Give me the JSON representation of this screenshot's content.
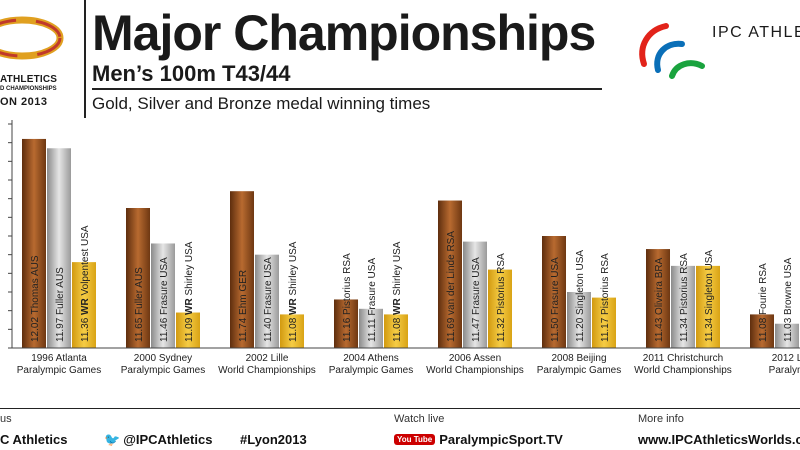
{
  "header": {
    "title": "Major Championships",
    "subtitle": "Men’s 100m T43/44",
    "description": "Gold, Silver and Bronze medal winning times",
    "left_logo": {
      "line1": "ATHLETICS",
      "line2": "D CHAMPIONSHIPS",
      "line3": "ON 2013"
    },
    "right_logo_text": "IPC ATHLET"
  },
  "colors": {
    "gold": "#e8b320",
    "silver": "#b5b5b5",
    "bronze": "#8b4a1c",
    "text": "#1a1a1a"
  },
  "chart_data": {
    "type": "bar",
    "ylim": [
      10.9,
      12.1
    ],
    "categories": [
      {
        "line1": "1996 Atlanta",
        "line2": "Paralympic Games"
      },
      {
        "line1": "2000 Sydney",
        "line2": "Paralympic Games"
      },
      {
        "line1": "2002 Lille",
        "line2": "World Championships"
      },
      {
        "line1": "2004 Athens",
        "line2": "Paralympic Games"
      },
      {
        "line1": "2006 Assen",
        "line2": "World Championships"
      },
      {
        "line1": "2008 Beijing",
        "line2": "Paralympic Games"
      },
      {
        "line1": "2011 Christchurch",
        "line2": "World Championships"
      },
      {
        "line1": "2012 L",
        "line2": "Paralym"
      }
    ],
    "groups": [
      {
        "bars": [
          {
            "medal": "bronze",
            "value": 12.02,
            "time": "12.02",
            "wr": "",
            "athlete": "Thomas AUS"
          },
          {
            "medal": "silver",
            "value": 11.97,
            "time": "11.97",
            "wr": "",
            "athlete": "Fuller AUS"
          },
          {
            "medal": "gold",
            "value": 11.36,
            "time": "11.36",
            "wr": "WR",
            "athlete": "Volpentest USA"
          }
        ]
      },
      {
        "bars": [
          {
            "medal": "bronze",
            "value": 11.65,
            "time": "11.65",
            "wr": "",
            "athlete": "Fuller AUS"
          },
          {
            "medal": "silver",
            "value": 11.46,
            "time": "11.46",
            "wr": "",
            "athlete": "Frasure USA"
          },
          {
            "medal": "gold",
            "value": 11.09,
            "time": "11.09",
            "wr": "WR",
            "athlete": "Shirley USA"
          }
        ]
      },
      {
        "bars": [
          {
            "medal": "bronze",
            "value": 11.74,
            "time": "11.74",
            "wr": "",
            "athlete": "Ehm GER"
          },
          {
            "medal": "silver",
            "value": 11.4,
            "time": "11.40",
            "wr": "",
            "athlete": "Frasure USA"
          },
          {
            "medal": "gold",
            "value": 11.08,
            "time": "11.08",
            "wr": "WR",
            "athlete": "Shirley USA"
          }
        ]
      },
      {
        "bars": [
          {
            "medal": "bronze",
            "value": 11.16,
            "time": "11.16",
            "wr": "",
            "athlete": "Pistorius RSA"
          },
          {
            "medal": "silver",
            "value": 11.11,
            "time": "11.11",
            "wr": "",
            "athlete": "Frasure USA"
          },
          {
            "medal": "gold",
            "value": 11.08,
            "time": "11.08",
            "wr": "WR",
            "athlete": "Shirley USA"
          }
        ]
      },
      {
        "bars": [
          {
            "medal": "bronze",
            "value": 11.69,
            "time": "11.69",
            "wr": "",
            "athlete": "van der Linde RSA"
          },
          {
            "medal": "silver",
            "value": 11.47,
            "time": "11.47",
            "wr": "",
            "athlete": "Frasure USA"
          },
          {
            "medal": "gold",
            "value": 11.32,
            "time": "11.32",
            "wr": "",
            "athlete": "Pistorius RSA"
          }
        ]
      },
      {
        "bars": [
          {
            "medal": "bronze",
            "value": 11.5,
            "time": "11.50",
            "wr": "",
            "athlete": "Frasure USA"
          },
          {
            "medal": "silver",
            "value": 11.2,
            "time": "11.20",
            "wr": "",
            "athlete": "Singleton USA"
          },
          {
            "medal": "gold",
            "value": 11.17,
            "time": "11.17",
            "wr": "",
            "athlete": "Pistorius RSA"
          }
        ]
      },
      {
        "bars": [
          {
            "medal": "bronze",
            "value": 11.43,
            "time": "11.43",
            "wr": "",
            "athlete": "Oliveira BRA"
          },
          {
            "medal": "silver",
            "value": 11.34,
            "time": "11.34",
            "wr": "",
            "athlete": "Pistorius RSA"
          },
          {
            "medal": "gold",
            "value": 11.34,
            "time": "11.34",
            "wr": "",
            "athlete": "Singleton USA"
          }
        ]
      },
      {
        "bars": [
          {
            "medal": "bronze",
            "value": 11.08,
            "time": "11.08",
            "wr": "",
            "athlete": "Fourie RSA"
          },
          {
            "medal": "silver",
            "value": 11.03,
            "time": "11.03",
            "wr": "",
            "athlete": "Browne USA"
          }
        ]
      }
    ]
  },
  "footer": {
    "col1_label": "us",
    "col1_value": "C Athletics",
    "twitter": "@IPCAthletics",
    "hashtag": "#Lyon2013",
    "watch_label": "Watch live",
    "youtube_badge": "You Tube",
    "watch_value": "ParalympicSport.TV",
    "info_label": "More info",
    "info_value": "www.IPCAthleticsWorlds.c"
  }
}
